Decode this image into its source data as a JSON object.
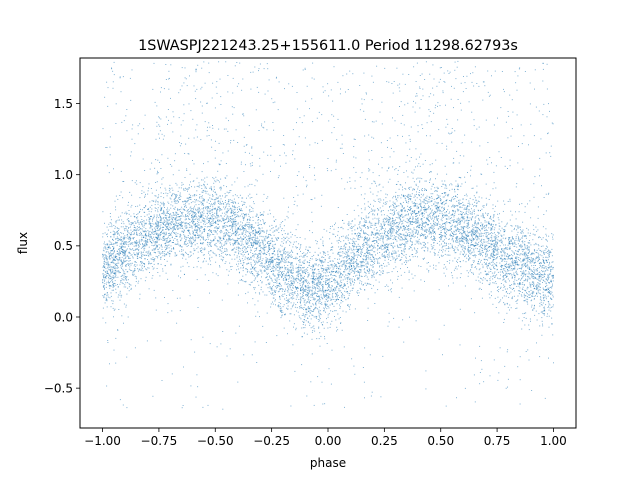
{
  "chart_data": {
    "type": "scatter",
    "title": "1SWASPJ221243.25+155611.0 Period 11298.62793s",
    "xlabel": "phase",
    "ylabel": "flux",
    "xlim": [
      -1.1,
      1.1
    ],
    "ylim": [
      -0.78,
      1.82
    ],
    "xticks": [
      -1.0,
      -0.75,
      -0.5,
      -0.25,
      0.0,
      0.25,
      0.5,
      0.75,
      1.0
    ],
    "xtick_labels": [
      "−1.00",
      "−0.75",
      "−0.50",
      "−0.25",
      "0.00",
      "0.25",
      "0.50",
      "0.75",
      "1.00"
    ],
    "yticks": [
      -0.5,
      0.0,
      0.5,
      1.0,
      1.5
    ],
    "ytick_labels": [
      "−0.5",
      "0.0",
      "0.5",
      "1.0",
      "1.5"
    ],
    "grid": false,
    "marker_color": "#1f77b4",
    "series": [
      {
        "x_range": [
          -1.0,
          1.0
        ],
        "profile_x": [
          -1.0,
          -0.9,
          -0.8,
          -0.7,
          -0.6,
          -0.5,
          -0.4,
          -0.3,
          -0.2,
          -0.1,
          -0.05,
          0.0,
          0.05,
          0.1,
          0.2,
          0.3,
          0.4,
          0.5,
          0.6,
          0.7,
          0.8,
          0.9,
          1.0
        ],
        "profile_median_flux": [
          0.33,
          0.45,
          0.57,
          0.65,
          0.69,
          0.67,
          0.6,
          0.46,
          0.3,
          0.2,
          0.2,
          0.24,
          0.3,
          0.38,
          0.52,
          0.64,
          0.69,
          0.68,
          0.62,
          0.52,
          0.4,
          0.32,
          0.26
        ],
        "scatter_spread": 0.2,
        "outlier_flux_range": [
          -0.65,
          1.8
        ]
      }
    ]
  }
}
